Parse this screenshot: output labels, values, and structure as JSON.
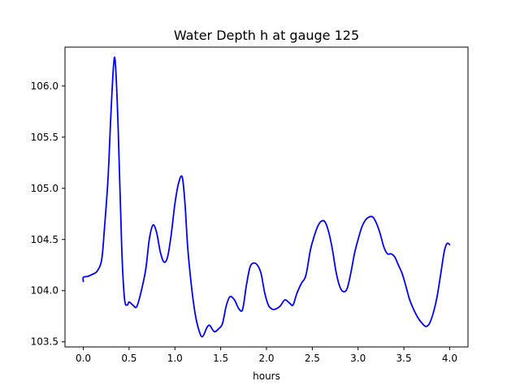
{
  "chart_data": {
    "type": "line",
    "title": "Water Depth h at gauge 125",
    "xlabel": "hours",
    "ylabel": "",
    "xlim": [
      -0.2,
      4.2
    ],
    "ylim": [
      103.45,
      106.38
    ],
    "x_ticks": [
      0.0,
      0.5,
      1.0,
      1.5,
      2.0,
      2.5,
      3.0,
      3.5,
      4.0
    ],
    "x_tick_labels": [
      "0.0",
      "0.5",
      "1.0",
      "1.5",
      "2.0",
      "2.5",
      "3.0",
      "3.5",
      "4.0"
    ],
    "y_ticks": [
      103.5,
      104.0,
      104.5,
      105.0,
      105.5,
      106.0
    ],
    "y_tick_labels": [
      "103.5",
      "104.0",
      "104.5",
      "105.0",
      "105.5",
      "106.0"
    ],
    "grid": false,
    "legend": "none",
    "series": [
      {
        "color": "#0000ff",
        "x": [
          0.0,
          0.0,
          0.05,
          0.1,
          0.15,
          0.2,
          0.23,
          0.27,
          0.3,
          0.33,
          0.35,
          0.38,
          0.42,
          0.45,
          0.48,
          0.5,
          0.54,
          0.58,
          0.62,
          0.68,
          0.72,
          0.76,
          0.8,
          0.84,
          0.88,
          0.92,
          0.96,
          1.0,
          1.04,
          1.08,
          1.11,
          1.14,
          1.18,
          1.22,
          1.26,
          1.3,
          1.35,
          1.38,
          1.43,
          1.48,
          1.52,
          1.56,
          1.6,
          1.65,
          1.7,
          1.74,
          1.78,
          1.82,
          1.86,
          1.9,
          1.94,
          1.98,
          2.02,
          2.06,
          2.1,
          2.15,
          2.2,
          2.25,
          2.29,
          2.33,
          2.38,
          2.43,
          2.48,
          2.52,
          2.56,
          2.6,
          2.64,
          2.68,
          2.72,
          2.76,
          2.8,
          2.84,
          2.88,
          2.92,
          2.96,
          3.0,
          3.04,
          3.08,
          3.12,
          3.16,
          3.2,
          3.24,
          3.28,
          3.32,
          3.36,
          3.4,
          3.44,
          3.48,
          3.52,
          3.56,
          3.6,
          3.65,
          3.7,
          3.74,
          3.78,
          3.82,
          3.86,
          3.9,
          3.94,
          3.97,
          4.0
        ],
        "y": [
          104.09,
          104.13,
          104.14,
          104.16,
          104.19,
          104.3,
          104.6,
          105.1,
          105.7,
          106.2,
          106.22,
          105.6,
          104.4,
          103.92,
          103.86,
          103.89,
          103.86,
          103.84,
          103.95,
          104.2,
          104.5,
          104.64,
          104.57,
          104.38,
          104.28,
          104.33,
          104.55,
          104.85,
          105.05,
          105.11,
          104.85,
          104.42,
          104.05,
          103.78,
          103.62,
          103.55,
          103.64,
          103.66,
          103.6,
          103.63,
          103.68,
          103.85,
          103.94,
          103.91,
          103.82,
          103.82,
          104.05,
          104.23,
          104.27,
          104.25,
          104.17,
          103.98,
          103.86,
          103.82,
          103.82,
          103.85,
          103.91,
          103.88,
          103.86,
          103.97,
          104.07,
          104.15,
          104.4,
          104.53,
          104.63,
          104.68,
          104.67,
          104.57,
          104.4,
          104.18,
          104.04,
          103.99,
          104.02,
          104.17,
          104.36,
          104.5,
          104.62,
          104.69,
          104.72,
          104.72,
          104.66,
          104.56,
          104.43,
          104.36,
          104.36,
          104.33,
          104.25,
          104.17,
          104.05,
          103.92,
          103.83,
          103.74,
          103.68,
          103.65,
          103.68,
          103.78,
          103.93,
          104.15,
          104.38,
          104.46,
          104.45
        ]
      }
    ]
  }
}
